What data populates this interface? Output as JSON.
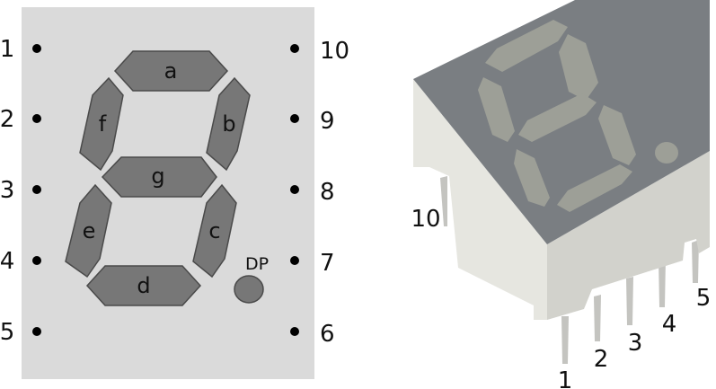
{
  "schematic": {
    "segments": {
      "a": "a",
      "b": "b",
      "c": "c",
      "d": "d",
      "e": "e",
      "f": "f",
      "g": "g",
      "dp": "DP"
    },
    "pins_left": [
      "1",
      "2",
      "3",
      "4",
      "5"
    ],
    "pins_right": [
      "10",
      "9",
      "8",
      "7",
      "6"
    ]
  },
  "package": {
    "pin_labels": [
      "1",
      "2",
      "3",
      "4",
      "5",
      "10"
    ]
  },
  "colors": {
    "board": "#dadada",
    "segment_fill": "#777777",
    "segment_stroke": "#4a4a4a",
    "package_top": "#7a7e82",
    "package_segment": "#9d9f97",
    "package_front": "#d2d2cc",
    "package_side": "#e6e6e0",
    "pin": "#c4c4c0"
  }
}
